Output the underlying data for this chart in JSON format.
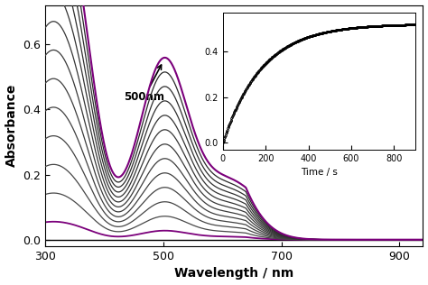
{
  "wavelength_range": [
    300,
    940
  ],
  "absorbance_ylim": [
    -0.02,
    0.72
  ],
  "absorbance_yticks": [
    0.0,
    0.2,
    0.4,
    0.6
  ],
  "xlabel": "Wavelength / nm",
  "ylabel": "Absorbance",
  "xticks": [
    300,
    500,
    700,
    900
  ],
  "annotation_text": "500nm",
  "num_spectra": 13,
  "purple_color": "#7B007B",
  "inset": {
    "xlim": [
      -20,
      900
    ],
    "ylim": [
      -0.03,
      0.57
    ],
    "xticks": [
      0,
      200,
      400,
      600,
      800
    ],
    "yticks": [
      0.0,
      0.2,
      0.4
    ],
    "xlabel": "Time / s",
    "asymptote": 0.52,
    "rate": 0.0055
  }
}
